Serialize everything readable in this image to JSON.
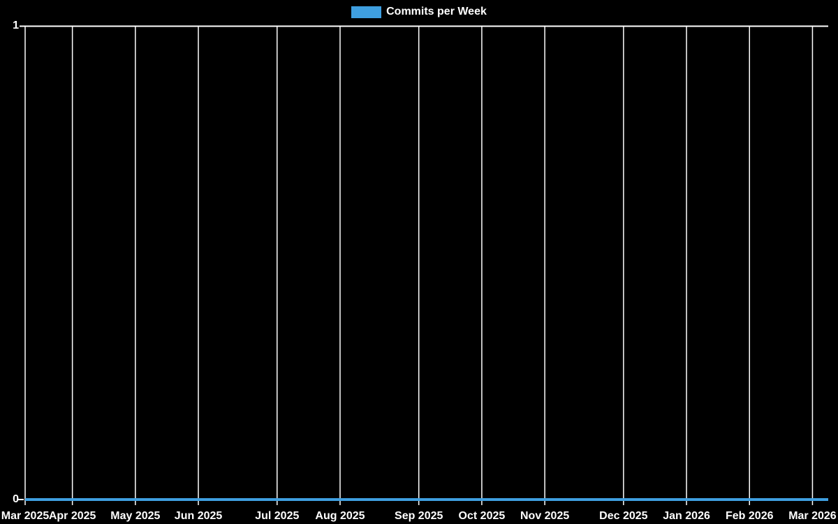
{
  "legend": {
    "label": "Commits per Week"
  },
  "axis": {
    "y": {
      "top_label": "1",
      "bottom_label": "0"
    }
  },
  "chart_data": {
    "type": "line",
    "title": "",
    "xlabel": "",
    "ylabel": "",
    "background": "#000000",
    "text_color": "#ffffff",
    "grid_color": "#ffffff",
    "grid": true,
    "legend_position": "top",
    "ylim": [
      0,
      1
    ],
    "y_ticks": [
      0,
      1
    ],
    "x_unit": "week",
    "x_ticks": [
      {
        "label": "Mar 2025",
        "week": 0
      },
      {
        "label": "Apr 2025",
        "week": 3
      },
      {
        "label": "May 2025",
        "week": 7
      },
      {
        "label": "Jun 2025",
        "week": 11
      },
      {
        "label": "Jul 2025",
        "week": 16
      },
      {
        "label": "Aug 2025",
        "week": 20
      },
      {
        "label": "Sep 2025",
        "week": 25
      },
      {
        "label": "Oct 2025",
        "week": 29
      },
      {
        "label": "Nov 2025",
        "week": 33
      },
      {
        "label": "Dec 2025",
        "week": 38
      },
      {
        "label": "Jan 2026",
        "week": 42
      },
      {
        "label": "Feb 2026",
        "week": 46
      },
      {
        "label": "Mar 2026",
        "week": 50
      }
    ],
    "series": [
      {
        "name": "Commits per Week",
        "color": "#3f9fe0",
        "values": [
          0,
          0,
          0,
          0,
          0,
          0,
          0,
          0,
          0,
          0,
          0,
          0,
          0,
          0,
          0,
          0,
          0,
          0,
          0,
          0,
          0,
          0,
          0,
          0,
          0,
          0,
          0,
          0,
          0,
          0,
          0,
          0,
          0,
          0,
          0,
          0,
          0,
          0,
          0,
          0,
          0,
          0,
          0,
          0,
          0,
          0,
          0,
          0,
          0,
          0,
          0,
          0
        ]
      }
    ]
  }
}
